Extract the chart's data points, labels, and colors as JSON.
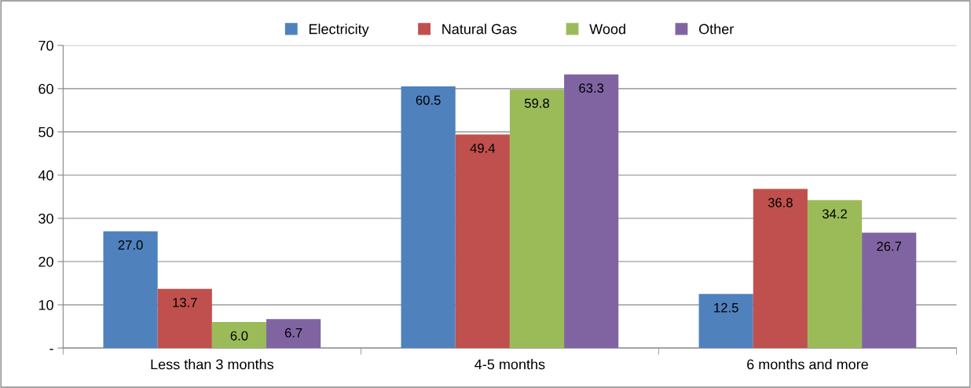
{
  "chart_data": {
    "type": "bar",
    "categories": [
      "Less than 3 months",
      "4-5 months",
      "6 months and more"
    ],
    "series": [
      {
        "name": "Electricity",
        "color": "#4f81bd",
        "values": [
          27.0,
          60.5,
          12.5
        ],
        "value_labels": [
          "27.0",
          "60.5",
          "12.5"
        ]
      },
      {
        "name": "Natural Gas",
        "color": "#c0504d",
        "values": [
          13.7,
          49.4,
          36.8
        ],
        "value_labels": [
          "13.7",
          "49.4",
          "36.8"
        ]
      },
      {
        "name": "Wood",
        "color": "#9bbb59",
        "values": [
          6.0,
          59.8,
          34.2
        ],
        "value_labels": [
          "6.0",
          "59.8",
          "34.2"
        ]
      },
      {
        "name": "Other",
        "color": "#8064a2",
        "values": [
          6.7,
          63.3,
          26.7
        ],
        "value_labels": [
          "6.7",
          "63.3",
          "26.7"
        ]
      }
    ],
    "ylim": [
      0,
      70
    ],
    "yticks": [
      {
        "value": 0,
        "label": "-"
      },
      10,
      20,
      30,
      40,
      50,
      60,
      70
    ],
    "grid": "y",
    "legend": "top"
  }
}
